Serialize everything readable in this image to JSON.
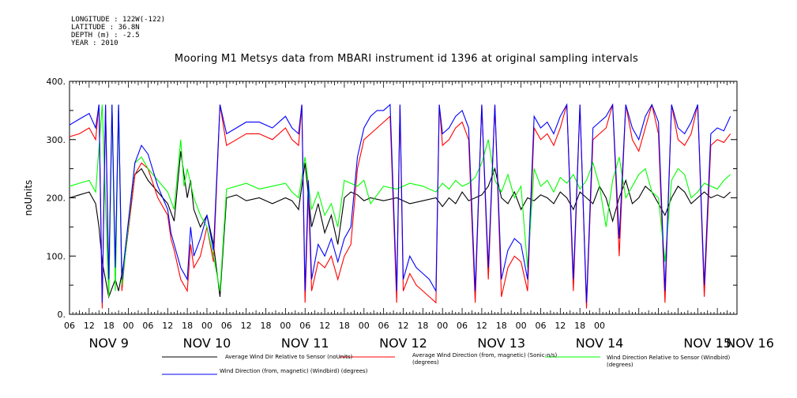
{
  "header": {
    "longitude": "LONGITUDE : 122W(-122)",
    "latitude": "LATITUDE : 36.8N",
    "depth": "DEPTH (m) : -2.5",
    "year": "YEAR : 2010"
  },
  "chart_data": {
    "type": "line",
    "title": "Mooring M1 Metsys data from MBARI instrument id 1396 at original sampling intervals",
    "xlabel": "",
    "ylabel": "noUnits",
    "ylim": [
      0,
      400
    ],
    "yticks": [
      0,
      100,
      200,
      300,
      400
    ],
    "ytick_labels": [
      "0.",
      "100.",
      "200.",
      "300.",
      "400."
    ],
    "xlim_hours": [
      0,
      204
    ],
    "hour_ticks": [
      "06",
      "09",
      "12",
      "15",
      "18",
      "00",
      "06",
      "09",
      "12",
      "15",
      "18",
      "00",
      "06",
      "09",
      "12",
      "15",
      "18",
      "00",
      "06",
      "09",
      "12",
      "15",
      "18",
      "00",
      "06",
      "09",
      "12",
      "15",
      "18",
      "00",
      "06",
      "09",
      "12",
      "15",
      "18",
      "00",
      "06",
      "09",
      "12",
      "15",
      "18",
      "00",
      "06",
      "09",
      "12",
      "15",
      "18",
      "00",
      "06"
    ],
    "hour_tick_labels": [
      "06",
      "12",
      "18",
      "00",
      "06",
      "12",
      "18",
      "00",
      "06",
      "12",
      "18",
      "00",
      "06",
      "12",
      "18",
      "00",
      "06",
      "12",
      "18",
      "00",
      "06",
      "12",
      "18",
      "00",
      "06",
      "12",
      "18",
      "00"
    ],
    "day_labels": [
      "NOV 9",
      "NOV 10",
      "NOV 11",
      "NOV 12",
      "NOV 13",
      "NOV 14",
      "NOV 15",
      "NOV 16"
    ],
    "grid": false,
    "legend_position": "bottom",
    "series": [
      {
        "name": "Average Wind Dir Relative to Sensor (noUnits)",
        "color": "#000000",
        "x": [
          0,
          3,
          6,
          8,
          9,
          10,
          12,
          14,
          15,
          17,
          20,
          22,
          24,
          27,
          30,
          32,
          34,
          36,
          37,
          38,
          40,
          42,
          44,
          46,
          48,
          51,
          54,
          58,
          62,
          66,
          68,
          70,
          72,
          74,
          76,
          78,
          80,
          82,
          84,
          86,
          88,
          90,
          92,
          96,
          100,
          104,
          108,
          112,
          114,
          116,
          118,
          120,
          122,
          124,
          126,
          128,
          130,
          132,
          134,
          136,
          138,
          140,
          142,
          144,
          146,
          148,
          150,
          152,
          154,
          156,
          158,
          160,
          162,
          164,
          166,
          168,
          170,
          172,
          174,
          176,
          178,
          180,
          182,
          184,
          186,
          188,
          190,
          192,
          194,
          196,
          198,
          200,
          202
        ],
        "y": [
          200,
          205,
          210,
          190,
          150,
          90,
          30,
          60,
          40,
          100,
          240,
          250,
          230,
          210,
          190,
          160,
          280,
          200,
          230,
          180,
          150,
          170,
          120,
          30,
          200,
          205,
          195,
          200,
          190,
          200,
          195,
          180,
          260,
          150,
          190,
          140,
          170,
          120,
          200,
          210,
          205,
          195,
          200,
          195,
          200,
          190,
          195,
          200,
          185,
          200,
          190,
          210,
          195,
          200,
          205,
          220,
          250,
          200,
          190,
          210,
          180,
          200,
          195,
          205,
          200,
          190,
          210,
          200,
          180,
          210,
          200,
          190,
          220,
          200,
          160,
          200,
          230,
          190,
          200,
          220,
          210,
          190,
          170,
          200,
          220,
          210,
          190,
          200,
          210,
          200,
          205,
          200,
          210
        ]
      },
      {
        "name": "Average Wind Direction (from, magnetic) (Sonic-n/s) (degrees)",
        "color": "#ff0000",
        "x": [
          0,
          3,
          6,
          8,
          9,
          10,
          11,
          12,
          13,
          14,
          15,
          16,
          17,
          20,
          22,
          24,
          27,
          30,
          31,
          32,
          34,
          36,
          37,
          38,
          40,
          42,
          44,
          46,
          48,
          51,
          54,
          58,
          62,
          66,
          68,
          70,
          71,
          72,
          73,
          74,
          76,
          78,
          80,
          82,
          84,
          86,
          88,
          90,
          92,
          94,
          96,
          98,
          100,
          101,
          102,
          104,
          106,
          108,
          110,
          112,
          113,
          114,
          116,
          118,
          120,
          122,
          124,
          126,
          128,
          130,
          132,
          134,
          136,
          138,
          140,
          142,
          144,
          146,
          148,
          150,
          152,
          154,
          156,
          158,
          160,
          162,
          164,
          166,
          168,
          170,
          172,
          174,
          176,
          178,
          180,
          182,
          184,
          186,
          188,
          190,
          192,
          194,
          196,
          198,
          200,
          202
        ],
        "y": [
          305,
          310,
          320,
          300,
          360,
          10,
          360,
          30,
          360,
          60,
          360,
          40,
          100,
          240,
          260,
          250,
          200,
          170,
          130,
          110,
          60,
          40,
          120,
          80,
          100,
          150,
          90,
          360,
          290,
          300,
          310,
          310,
          300,
          320,
          300,
          290,
          360,
          20,
          210,
          40,
          90,
          80,
          100,
          60,
          100,
          120,
          250,
          300,
          310,
          320,
          330,
          340,
          20,
          360,
          40,
          70,
          50,
          40,
          30,
          20,
          360,
          290,
          300,
          320,
          330,
          300,
          20,
          360,
          60,
          360,
          30,
          80,
          100,
          90,
          40,
          320,
          300,
          310,
          290,
          320,
          360,
          40,
          360,
          10,
          300,
          310,
          320,
          360,
          100,
          360,
          300,
          280,
          320,
          360,
          310,
          20,
          360,
          300,
          290,
          310,
          360,
          30,
          290,
          300,
          295,
          310
        ]
      },
      {
        "name": "Wind Direction Relative to Sensor (Windbird) (degrees)",
        "color": "#00ff00",
        "x": [
          0,
          3,
          6,
          8,
          10,
          12,
          13,
          14,
          15,
          16,
          17,
          20,
          22,
          24,
          27,
          30,
          32,
          34,
          35,
          36,
          38,
          40,
          42,
          44,
          46,
          48,
          51,
          54,
          58,
          62,
          66,
          68,
          70,
          72,
          74,
          76,
          78,
          80,
          82,
          84,
          86,
          88,
          90,
          92,
          96,
          100,
          104,
          108,
          112,
          114,
          116,
          118,
          120,
          122,
          124,
          126,
          128,
          130,
          132,
          134,
          136,
          138,
          140,
          142,
          144,
          146,
          148,
          150,
          152,
          154,
          156,
          158,
          160,
          162,
          164,
          166,
          168,
          170,
          172,
          174,
          176,
          178,
          180,
          182,
          184,
          186,
          188,
          190,
          192,
          194,
          196,
          198,
          200,
          202
        ],
        "y": [
          220,
          225,
          230,
          210,
          360,
          30,
          360,
          40,
          360,
          50,
          100,
          260,
          270,
          250,
          230,
          210,
          180,
          300,
          220,
          250,
          200,
          170,
          150,
          100,
          40,
          215,
          220,
          225,
          215,
          220,
          225,
          210,
          200,
          270,
          180,
          210,
          170,
          190,
          150,
          230,
          225,
          220,
          230,
          190,
          220,
          215,
          225,
          220,
          210,
          225,
          215,
          230,
          220,
          225,
          235,
          260,
          300,
          230,
          210,
          240,
          200,
          220,
          80,
          250,
          220,
          230,
          210,
          235,
          225,
          240,
          215,
          230,
          260,
          220,
          150,
          230,
          270,
          200,
          220,
          240,
          250,
          210,
          200,
          90,
          230,
          250,
          240,
          200,
          210,
          225,
          220,
          215,
          230,
          240
        ]
      },
      {
        "name": "Wind Direction (from, magnetic) (Windbird) (degrees)",
        "color": "#0000ff",
        "x": [
          0,
          3,
          6,
          8,
          9,
          10,
          11,
          12,
          13,
          14,
          15,
          16,
          17,
          20,
          22,
          24,
          27,
          30,
          31,
          32,
          34,
          36,
          37,
          38,
          40,
          42,
          44,
          46,
          48,
          51,
          54,
          58,
          62,
          66,
          68,
          70,
          71,
          72,
          73,
          74,
          76,
          78,
          80,
          82,
          84,
          86,
          88,
          90,
          92,
          94,
          96,
          98,
          100,
          101,
          102,
          104,
          106,
          108,
          110,
          112,
          113,
          114,
          116,
          118,
          120,
          122,
          124,
          126,
          128,
          130,
          132,
          134,
          136,
          138,
          140,
          142,
          144,
          146,
          148,
          150,
          152,
          154,
          156,
          158,
          160,
          162,
          164,
          166,
          168,
          170,
          172,
          174,
          176,
          178,
          180,
          182,
          184,
          186,
          188,
          190,
          192,
          194,
          196,
          198,
          200,
          202
        ],
        "y": [
          325,
          335,
          345,
          320,
          360,
          20,
          360,
          60,
          360,
          80,
          360,
          60,
          110,
          260,
          290,
          275,
          220,
          180,
          140,
          120,
          80,
          60,
          150,
          100,
          130,
          170,
          110,
          360,
          310,
          320,
          330,
          330,
          320,
          340,
          320,
          310,
          360,
          40,
          230,
          60,
          120,
          100,
          130,
          90,
          130,
          150,
          270,
          320,
          340,
          350,
          350,
          360,
          40,
          360,
          60,
          100,
          80,
          70,
          60,
          40,
          360,
          310,
          320,
          340,
          350,
          320,
          40,
          360,
          80,
          360,
          60,
          110,
          130,
          120,
          60,
          340,
          320,
          330,
          310,
          340,
          360,
          60,
          360,
          20,
          320,
          330,
          340,
          360,
          130,
          360,
          320,
          300,
          340,
          360,
          330,
          40,
          360,
          320,
          310,
          330,
          360,
          50,
          310,
          320,
          315,
          340
        ]
      }
    ]
  }
}
